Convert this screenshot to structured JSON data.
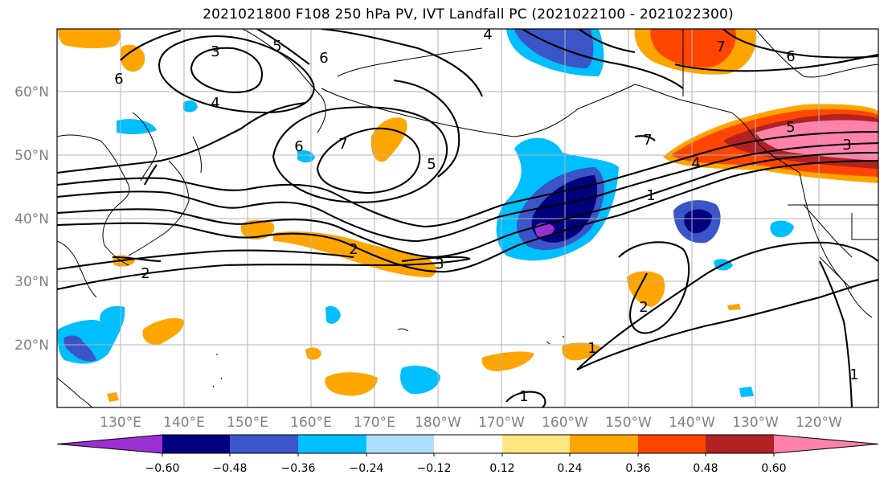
{
  "title": "2021021800 F108 250 hPa PV, IVT Landfall PC (2021022100 - 2021022300)",
  "lat_labels": [
    "60°N",
    "50°N",
    "40°N",
    "30°N",
    "20°N"
  ],
  "lon_labels": [
    "130°E",
    "140°E",
    "150°E",
    "160°E",
    "170°E",
    "180°W",
    "170°W",
    "160°W",
    "150°W",
    "140°W",
    "130°W",
    "120°W"
  ],
  "colorbar": {
    "colors": [
      "#9b30d0",
      "#00007f",
      "#3a55c8",
      "#00bfff",
      "#b0e0ff",
      "#ffffff",
      "#ffe680",
      "#ffa500",
      "#ff4500",
      "#b22222",
      "#ff82ab"
    ],
    "tick_labels": [
      "−0.60",
      "−0.48",
      "−0.36",
      "−0.24",
      "−0.12",
      "0.12",
      "0.24",
      "0.36",
      "0.48",
      "0.60"
    ]
  },
  "contour_labels": [
    "3",
    "4",
    "5",
    "6",
    "6",
    "4",
    "7",
    "6",
    "5",
    "2",
    "2",
    "3",
    "1",
    "4",
    "5",
    "3",
    "7",
    "7",
    "6",
    "2",
    "1",
    "1",
    "1"
  ]
}
